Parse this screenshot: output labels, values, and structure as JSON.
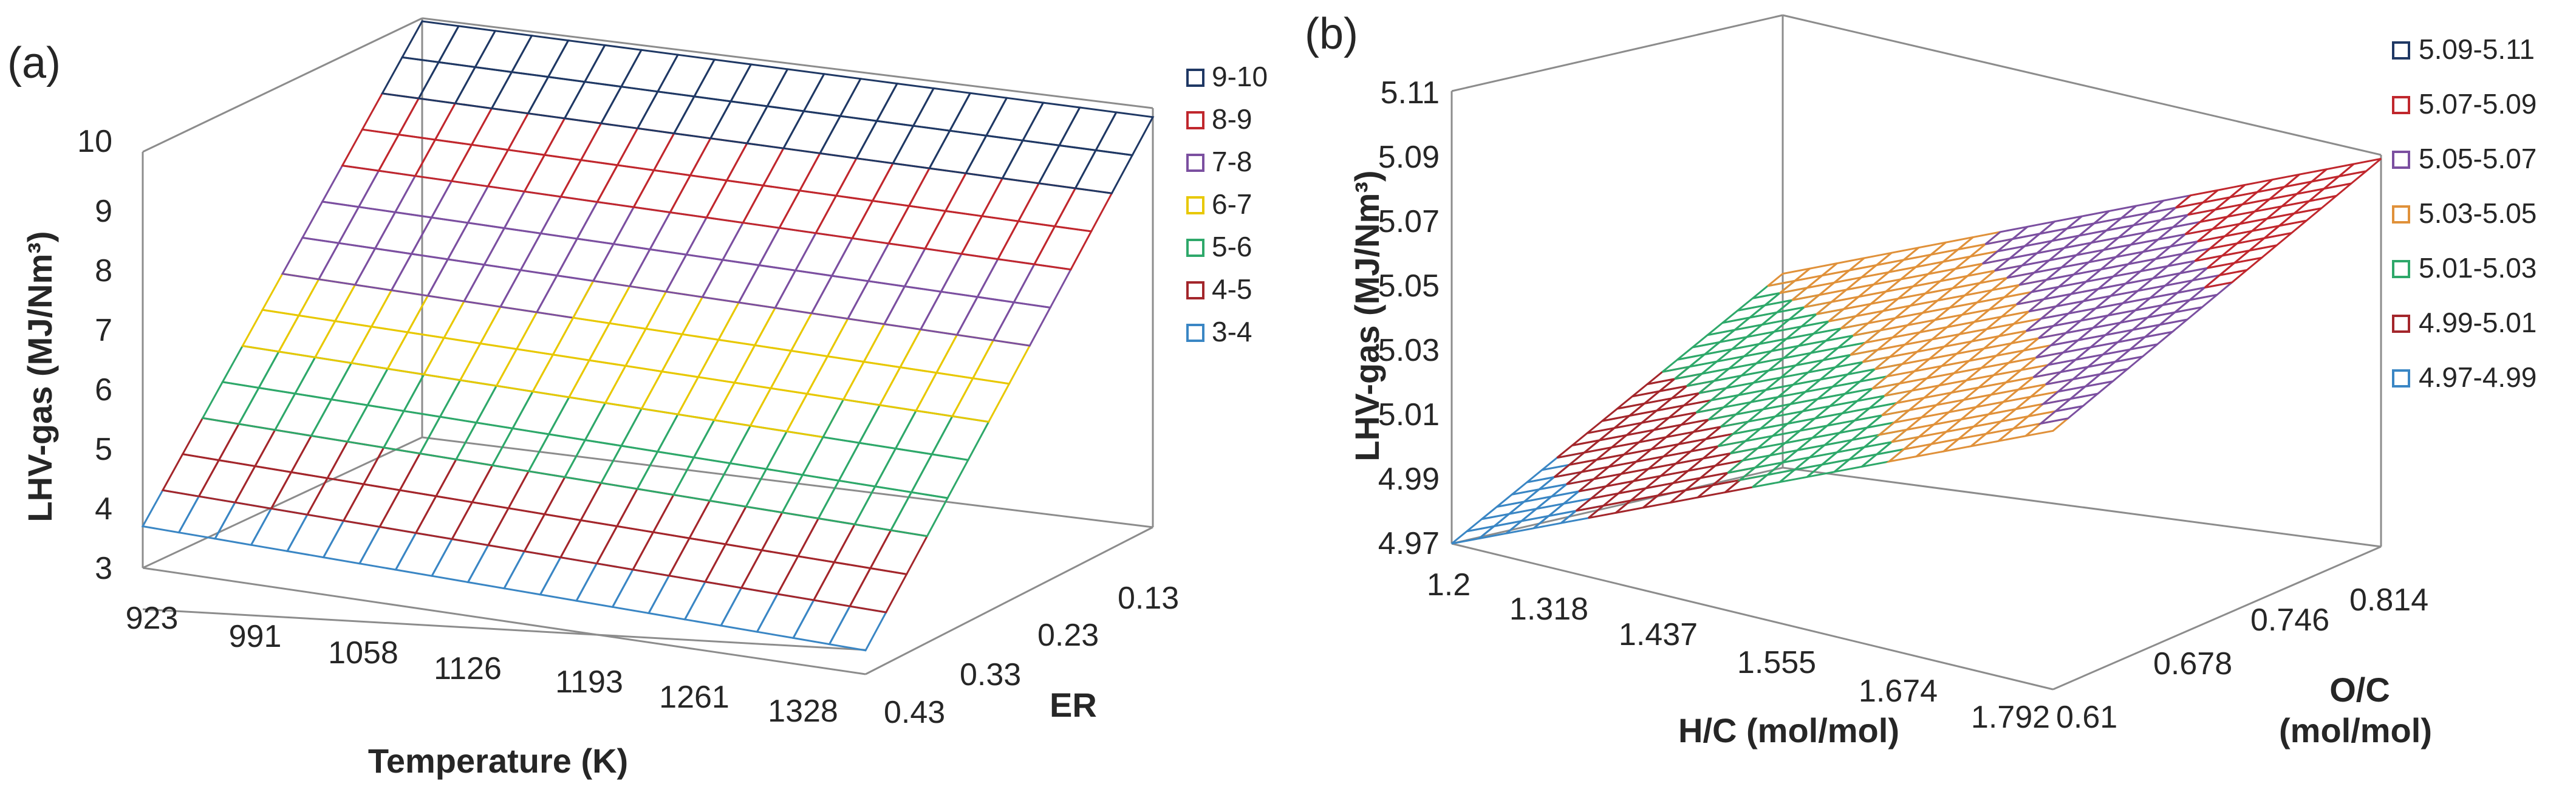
{
  "chart_data": [
    {
      "panel": "(a)",
      "type": "surface",
      "zlabel": "LHV-gas (MJ/Nm³)",
      "xlabel": "Temperature (K)",
      "ylabel": "ER",
      "x_ticks": [
        "923",
        "991",
        "1058",
        "1126",
        "1193",
        "1261",
        "1328"
      ],
      "y_ticks": [
        "0.43",
        "0.33",
        "0.23",
        "0.13"
      ],
      "z_ticks": [
        "3",
        "4",
        "5",
        "6",
        "7",
        "8",
        "9",
        "10"
      ],
      "xlim": [
        923,
        1328
      ],
      "ylim": [
        0.43,
        0.13
      ],
      "zlim": [
        3,
        10
      ],
      "corners": {
        "minX_maxER": 3.7,
        "maxX_maxER": 3.4,
        "minX_minER": 10.0,
        "maxX_minER": 9.9
      },
      "legend": [
        {
          "label": "9-10",
          "color": "#1f3864"
        },
        {
          "label": "8-9",
          "color": "#c0272d"
        },
        {
          "label": "7-8",
          "color": "#7b4fa0"
        },
        {
          "label": "6-7",
          "color": "#e8c800"
        },
        {
          "label": "5-6",
          "color": "#2ea86a"
        },
        {
          "label": "4-5",
          "color": "#a3262b"
        },
        {
          "label": "3-4",
          "color": "#3a86c4"
        }
      ]
    },
    {
      "panel": "(b)",
      "type": "surface",
      "zlabel": "LHV-gas (MJ/Nm³)",
      "xlabel": "H/C (mol/mol)",
      "ylabel_line1": "O/C",
      "ylabel_line2": "(mol/mol)",
      "x_ticks": [
        "1.2",
        "1.318",
        "1.437",
        "1.555",
        "1.674",
        "1.792"
      ],
      "y_ticks": [
        "0.61",
        "0.678",
        "0.746",
        "0.814"
      ],
      "z_ticks": [
        "4.97",
        "4.99",
        "5.01",
        "5.03",
        "5.05",
        "5.07",
        "5.09",
        "5.11"
      ],
      "xlim": [
        1.2,
        1.792
      ],
      "ylim": [
        0.61,
        0.814
      ],
      "zlim": [
        4.97,
        5.11
      ],
      "corners": {
        "minHC_minOC": 4.97,
        "maxHC_minOC": 5.05,
        "minHC_maxOC": 5.03,
        "maxHC_maxOC": 5.09
      },
      "legend": [
        {
          "label": "5.09-5.11",
          "color": "#1f3864"
        },
        {
          "label": "5.07-5.09",
          "color": "#c0272d"
        },
        {
          "label": "5.05-5.07",
          "color": "#7b4fa0"
        },
        {
          "label": "5.03-5.05",
          "color": "#e0913a"
        },
        {
          "label": "5.01-5.03",
          "color": "#2ea86a"
        },
        {
          "label": "4.99-5.01",
          "color": "#a3262b"
        },
        {
          "label": "4.97-4.99",
          "color": "#3a86c4"
        }
      ]
    }
  ]
}
